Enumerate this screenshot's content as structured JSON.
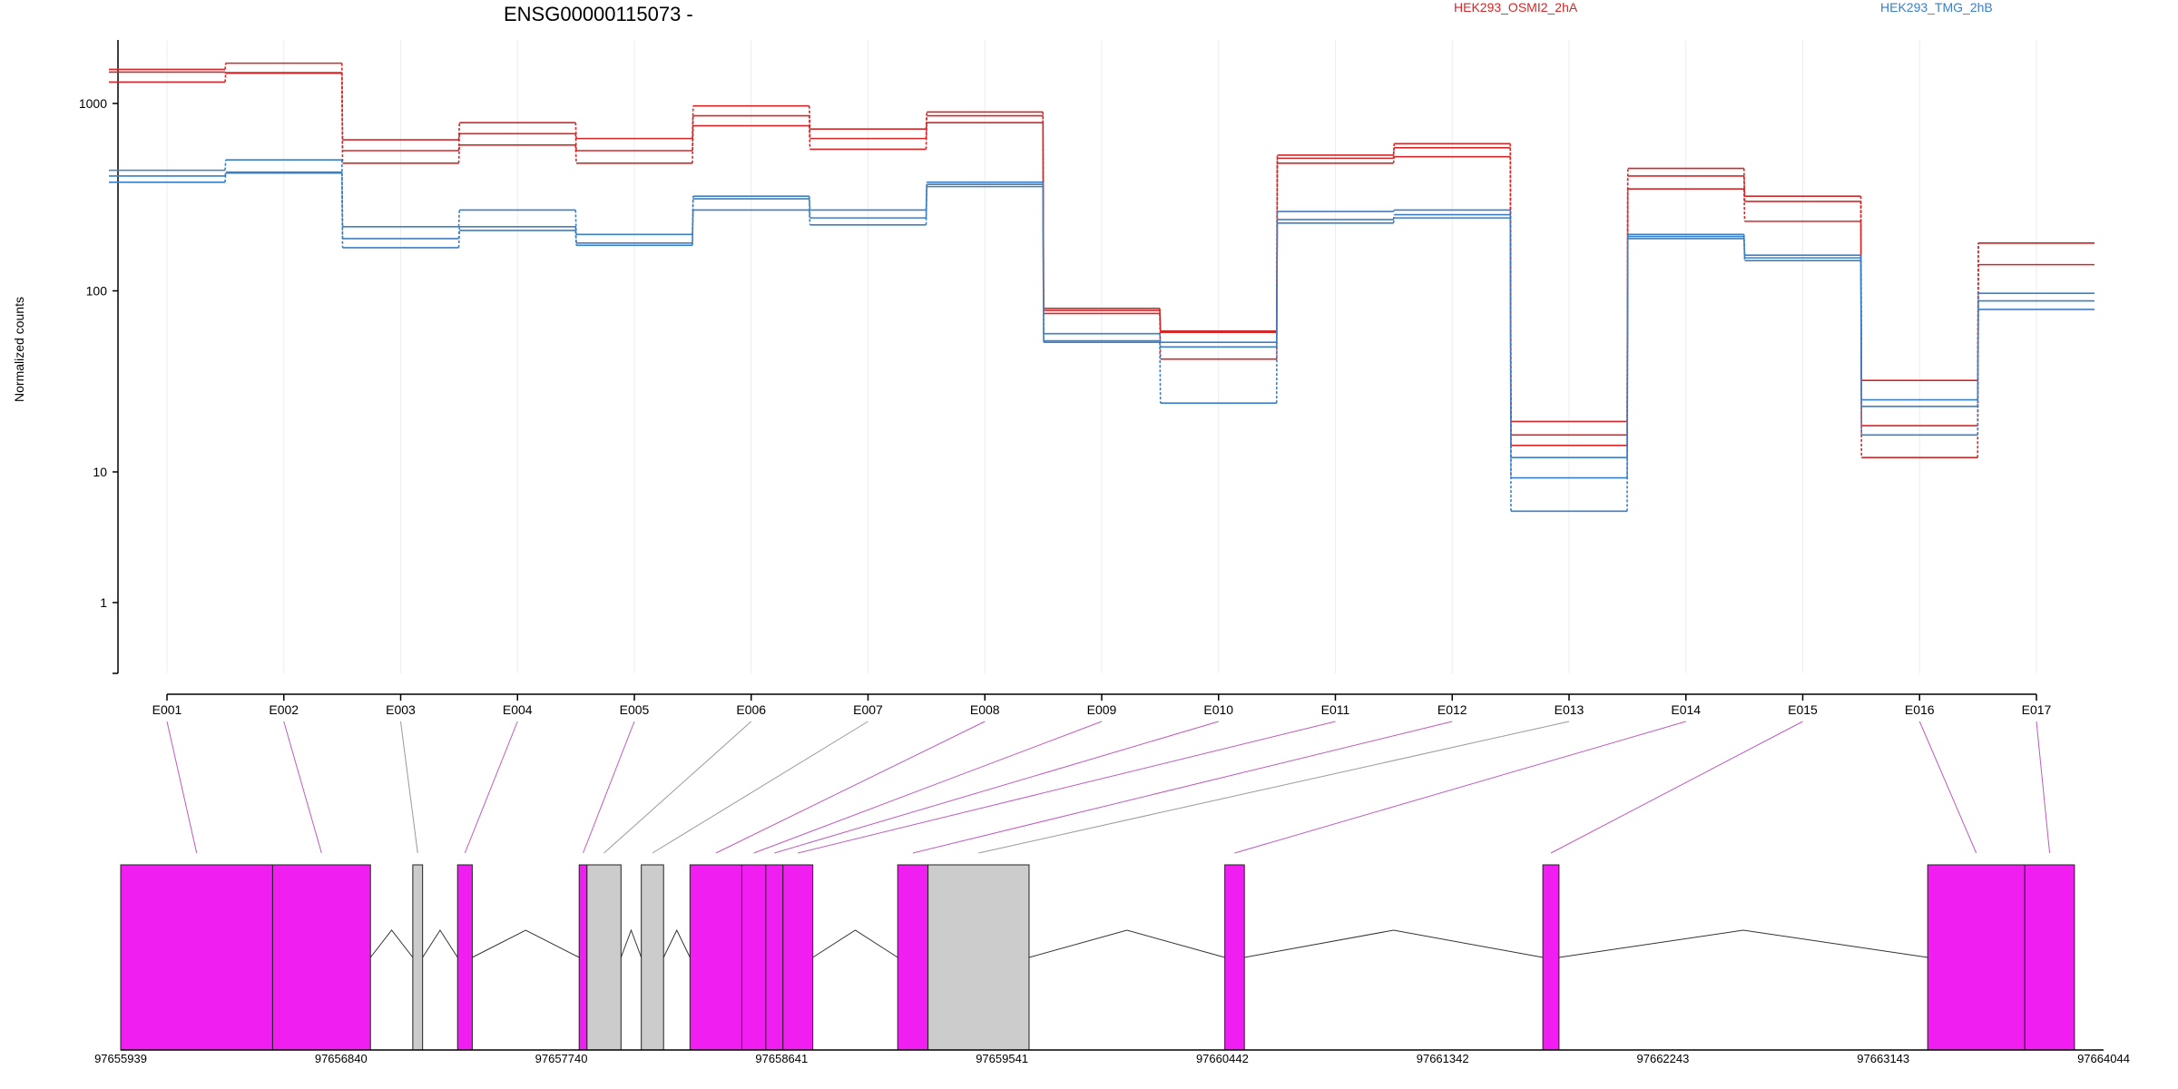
{
  "chart_data": {
    "type": "line",
    "title": "ENSG00000115073 -",
    "ylabel": "Normalized counts",
    "yscale": "log",
    "ylim": [
      0.4,
      2300
    ],
    "yticks": [
      1,
      10,
      100,
      1000
    ],
    "ytick_labels": [
      "1",
      "10",
      "100",
      "1000"
    ],
    "grid": "vertical",
    "categories": [
      "E001",
      "E002",
      "E003",
      "E004",
      "E005",
      "E006",
      "E007",
      "E008",
      "E009",
      "E010",
      "E011",
      "E012",
      "E013",
      "E014",
      "E015",
      "E016",
      "E017"
    ],
    "legend": [
      {
        "label": "HEK293_OSMI2_2hA",
        "color": "#d62728"
      },
      {
        "label": "HEK293_TMG_2hB",
        "color": "#3b7fc4"
      }
    ],
    "series": [
      {
        "group": "HEK293_OSMI2_2hA",
        "color": "#d62728",
        "values": [
          1520,
          1640,
          640,
          790,
          650,
          970,
          730,
          900,
          80,
          60,
          530,
          610,
          19,
          450,
          320,
          32,
          180
        ]
      },
      {
        "group": "HEK293_OSMI2_2hA",
        "color": "#d62728",
        "values": [
          1470,
          1450,
          560,
          690,
          560,
          860,
          650,
          860,
          78,
          59,
          510,
          580,
          16,
          410,
          300,
          18,
          180
        ]
      },
      {
        "group": "HEK293_OSMI2_2hA",
        "color": "#d62728",
        "values": [
          1300,
          1460,
          480,
          600,
          480,
          760,
          570,
          790,
          75,
          42,
          480,
          520,
          14,
          350,
          235,
          12,
          138
        ]
      },
      {
        "group": "HEK293_TMG_2hB",
        "color": "#3b7fc4",
        "values": [
          440,
          500,
          220,
          270,
          200,
          320,
          270,
          380,
          58,
          52,
          265,
          270,
          12,
          200,
          155,
          25,
          97
        ]
      },
      {
        "group": "HEK293_TMG_2hB",
        "color": "#3b7fc4",
        "values": [
          410,
          430,
          190,
          220,
          180,
          310,
          245,
          370,
          53,
          49,
          240,
          255,
          9,
          195,
          150,
          23,
          88
        ]
      },
      {
        "group": "HEK293_TMG_2hB",
        "color": "#3b7fc4",
        "values": [
          380,
          425,
          170,
          210,
          175,
          270,
          225,
          360,
          52,
          24,
          230,
          245,
          5,
          190,
          145,
          16,
          79
        ]
      }
    ],
    "gene_model": {
      "coordinate_labels": [
        "97655939",
        "97656840",
        "97657740",
        "97658641",
        "97659541",
        "97660442",
        "97661342",
        "97662243",
        "97663143",
        "97664044"
      ],
      "exons": [
        {
          "id": "E001",
          "start": 97655939,
          "end": 97656560,
          "color": "#f01ef0"
        },
        {
          "id": "E002",
          "start": 97656560,
          "end": 97656960,
          "color": "#f01ef0"
        },
        {
          "id": "E003",
          "start": 97657133,
          "end": 97657173,
          "color": "#cccccc"
        },
        {
          "id": "E004",
          "start": 97657316,
          "end": 97657376,
          "color": "#f01ef0"
        },
        {
          "id": "E005",
          "start": 97657813,
          "end": 97657845,
          "color": "#f01ef0"
        },
        {
          "id": "E006",
          "start": 97657845,
          "end": 97657984,
          "color": "#cccccc"
        },
        {
          "id": "E007",
          "start": 97658067,
          "end": 97658158,
          "color": "#cccccc"
        },
        {
          "id": "E008",
          "start": 97658266,
          "end": 97658478,
          "color": "#f01ef0"
        },
        {
          "id": "E009",
          "start": 97658478,
          "end": 97658576,
          "color": "#f01ef0"
        },
        {
          "id": "E010",
          "start": 97658576,
          "end": 97658646,
          "color": "#f01ef0"
        },
        {
          "id": "E011",
          "start": 97658646,
          "end": 97658768,
          "color": "#f01ef0"
        },
        {
          "id": "E012",
          "start": 97659115,
          "end": 97659239,
          "color": "#f01ef0"
        },
        {
          "id": "E013",
          "start": 97659239,
          "end": 97659652,
          "color": "#cccccc"
        },
        {
          "id": "E014",
          "start": 97660452,
          "end": 97660532,
          "color": "#f01ef0"
        },
        {
          "id": "E015",
          "start": 97661752,
          "end": 97661818,
          "color": "#f01ef0"
        },
        {
          "id": "E016",
          "start": 97663325,
          "end": 97663722,
          "color": "#f01ef0"
        },
        {
          "id": "E017",
          "start": 97663722,
          "end": 97663925,
          "color": "#f01ef0"
        }
      ]
    }
  }
}
